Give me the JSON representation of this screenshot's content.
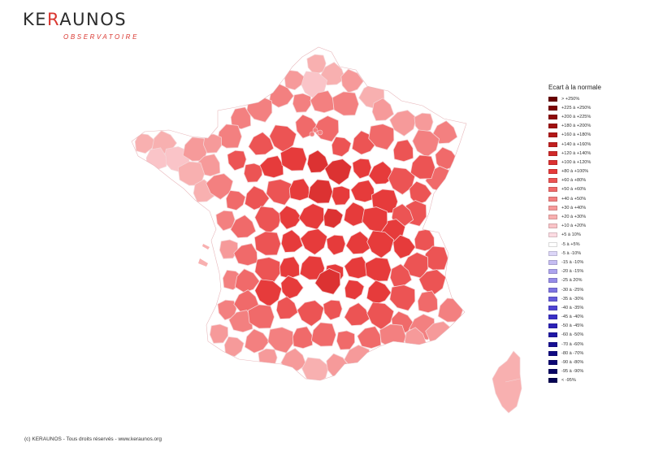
{
  "logo": {
    "main_prefix": "KE",
    "main_accent": "R",
    "main_suffix": "AUNOS",
    "sub": "OBSERVATOIRE"
  },
  "legend": {
    "title": "Ecart à la normale",
    "items": [
      {
        "label": "> +250%",
        "color": "#6b0000"
      },
      {
        "label": "+225 à +250%",
        "color": "#7d0505"
      },
      {
        "label": "+200 à +225%",
        "color": "#8f0a0a"
      },
      {
        "label": "+180 à +200%",
        "color": "#a11010"
      },
      {
        "label": "+160 à +180%",
        "color": "#b31818"
      },
      {
        "label": "+140 à +160%",
        "color": "#c22020"
      },
      {
        "label": "+120 à +140%",
        "color": "#d12a2a"
      },
      {
        "label": "+100 à +120%",
        "color": "#dc3232"
      },
      {
        "label": "+80 à +100%",
        "color": "#e63b3b"
      },
      {
        "label": "+60 à +80%",
        "color": "#ec5454"
      },
      {
        "label": "+50 à +60%",
        "color": "#f06a6a"
      },
      {
        "label": "+40 à +50%",
        "color": "#f38080"
      },
      {
        "label": "+30 à +40%",
        "color": "#f69a9a"
      },
      {
        "label": "+20 à +30%",
        "color": "#f8b0b0"
      },
      {
        "label": "+10 à +20%",
        "color": "#fac4c8"
      },
      {
        "label": "+5 à 10%",
        "color": "#fcdbe2"
      },
      {
        "label": "-5 à +5%",
        "color": "#ffffff"
      },
      {
        "label": "-5 à -10%",
        "color": "#dcd6f8"
      },
      {
        "label": "-15 à -10%",
        "color": "#c5bdf2"
      },
      {
        "label": "-20 à -15%",
        "color": "#ada4ee"
      },
      {
        "label": "-25 à 20%",
        "color": "#968ce8"
      },
      {
        "label": "-30 à -25%",
        "color": "#7e74e2"
      },
      {
        "label": "-35 à -30%",
        "color": "#665cdc"
      },
      {
        "label": "-40 à -35%",
        "color": "#4e44d4"
      },
      {
        "label": "-45 à -40%",
        "color": "#3a30c8"
      },
      {
        "label": "-50 à -45%",
        "color": "#2c22b8"
      },
      {
        "label": "-60 à -50%",
        "color": "#2018a6"
      },
      {
        "label": "-70 à -60%",
        "color": "#181094"
      },
      {
        "label": "-80 à -70%",
        "color": "#120b84"
      },
      {
        "label": "-90 à -80%",
        "color": "#0d0774"
      },
      {
        "label": "-95 à -90%",
        "color": "#090464"
      },
      {
        "label": "< -95%",
        "color": "#050254"
      }
    ]
  },
  "map": {
    "palette": {
      "p10": "#fac4c8",
      "p20": "#f8b0b0",
      "p30": "#f69a9a",
      "p40": "#f38080",
      "p50": "#f06a6a",
      "p60": "#ec5454",
      "p80": "#e63b3b",
      "p100": "#dc3232",
      "border": "#f4d4d6"
    }
  },
  "footer": {
    "copyright": "(c) KERAUNOS - Tous droits réservés - www.keraunos.org"
  }
}
